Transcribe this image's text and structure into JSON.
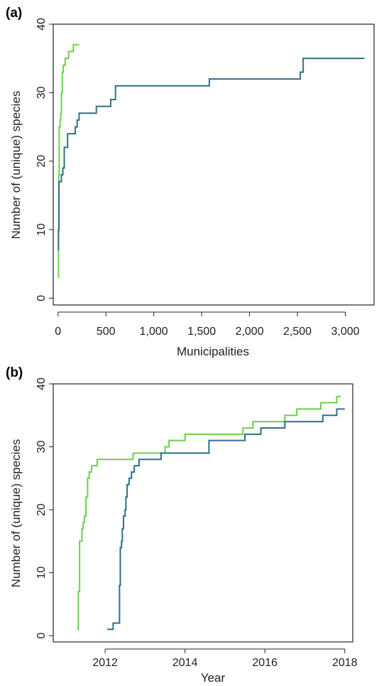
{
  "colors": {
    "green_series": "#6ccf4e",
    "teal_series": "#2f6f87"
  },
  "chart_data": [
    {
      "panel_label": "(a)",
      "type": "line",
      "xlabel": "Municipalities",
      "ylabel": "Number of (unique) species",
      "xlim": [
        -50,
        3300
      ],
      "ylim": [
        -1,
        40
      ],
      "x_ticks": [
        0,
        500,
        1000,
        1500,
        2000,
        2500,
        3000
      ],
      "x_tick_labels": [
        "0",
        "500",
        "1,000",
        "1,500",
        "2,000",
        "2,500",
        "3,000"
      ],
      "y_ticks": [
        0,
        10,
        20,
        30,
        40
      ],
      "y_tick_labels": [
        "0",
        "10",
        "20",
        "30",
        "40"
      ],
      "grid": false,
      "series": [
        {
          "color": "#6ccf4e",
          "x": [
            0,
            5,
            8,
            12,
            18,
            22,
            28,
            35,
            45,
            55,
            65,
            75,
            90,
            110,
            130,
            160,
            190,
            220
          ],
          "y": [
            3,
            10,
            18,
            25,
            25,
            26,
            27,
            30,
            33,
            34,
            34,
            35,
            35,
            36,
            36,
            37,
            37,
            37
          ]
        },
        {
          "color": "#2f6f87",
          "x": [
            0,
            5,
            10,
            20,
            35,
            50,
            65,
            80,
            100,
            150,
            180,
            200,
            220,
            250,
            300,
            400,
            550,
            600,
            1000,
            1500,
            1580,
            2000,
            2500,
            2530,
            2560,
            3000,
            3200
          ],
          "y": [
            7,
            10,
            17,
            17,
            18,
            19,
            22,
            22,
            24,
            24,
            25,
            26,
            27,
            27,
            27,
            28,
            29,
            31,
            31,
            31,
            32,
            32,
            32,
            33,
            35,
            35,
            35
          ]
        }
      ]
    },
    {
      "panel_label": "(b)",
      "type": "line",
      "xlabel": "Year",
      "ylabel": "Number of (unique) species",
      "xlim": [
        2010.7,
        2018.2
      ],
      "ylim": [
        -1,
        40
      ],
      "x_ticks": [
        2012,
        2014,
        2016,
        2018
      ],
      "x_tick_labels": [
        "2012",
        "2014",
        "2016",
        "2018"
      ],
      "y_ticks": [
        0,
        10,
        20,
        30,
        40
      ],
      "y_tick_labels": [
        "0",
        "10",
        "20",
        "30",
        "40"
      ],
      "grid": false,
      "series": [
        {
          "color": "#6ccf4e",
          "x": [
            2011.3,
            2011.33,
            2011.36,
            2011.42,
            2011.45,
            2011.48,
            2011.52,
            2011.56,
            2011.6,
            2011.66,
            2011.72,
            2011.8,
            2012.0,
            2012.7,
            2013.4,
            2013.5,
            2013.6,
            2014.0,
            2015.45,
            2015.7,
            2016.5,
            2016.8,
            2017.4,
            2017.8,
            2017.9
          ],
          "y": [
            1,
            7,
            15,
            17,
            18,
            19,
            22,
            25,
            26,
            27,
            27,
            28,
            28,
            29,
            29,
            30,
            31,
            32,
            33,
            34,
            35,
            36,
            37,
            38,
            38
          ],
          "step": true
        },
        {
          "color": "#2f6f87",
          "x": [
            2012.05,
            2012.2,
            2012.33,
            2012.36,
            2012.38,
            2012.41,
            2012.43,
            2012.46,
            2012.5,
            2012.52,
            2012.55,
            2012.6,
            2012.66,
            2012.73,
            2012.85,
            2013.0,
            2013.4,
            2014.0,
            2014.6,
            2015.5,
            2015.9,
            2016.5,
            2017.45,
            2017.8,
            2018.0
          ],
          "y": [
            1,
            2,
            2,
            8,
            14,
            15,
            17,
            19,
            20,
            22,
            24,
            25,
            26,
            27,
            28,
            28,
            29,
            29,
            31,
            32,
            33,
            34,
            35,
            36,
            36
          ],
          "step": true
        }
      ]
    }
  ]
}
